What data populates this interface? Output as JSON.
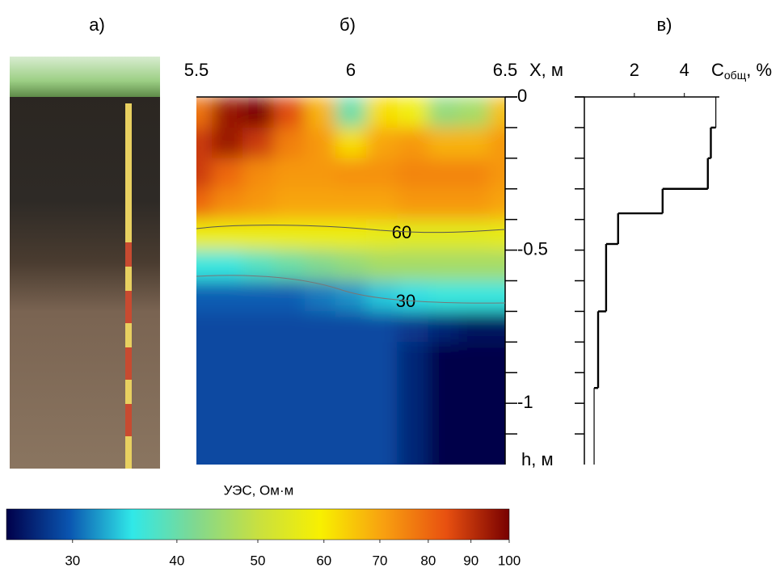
{
  "photo_panel": {
    "label": "а)"
  },
  "chart_data": [
    {
      "type": "heatmap",
      "label": "б)",
      "xlabel": "X, м",
      "ylabel": "h, м",
      "xlim": [
        5.5,
        6.5
      ],
      "xticks": [
        5.5,
        6,
        6.5
      ],
      "ylim": [
        0,
        -1.2
      ],
      "yticks": [
        0,
        -0.5,
        -1
      ],
      "yminorticks": [
        -0.1,
        -0.2,
        -0.3,
        -0.4,
        -0.6,
        -0.7,
        -0.8,
        -0.9,
        -1.1
      ],
      "x": [
        5.5,
        5.6,
        5.7,
        5.8,
        5.9,
        6.0,
        6.1,
        6.2,
        6.3,
        6.4,
        6.5
      ],
      "y": [
        -0.05,
        -0.15,
        -0.25,
        -0.35,
        -0.45,
        -0.55,
        -0.65,
        -0.75,
        -0.85,
        -0.95,
        -1.05,
        -1.15
      ],
      "z": [
        [
          78,
          95,
          100,
          85,
          68,
          40,
          62,
          58,
          44,
          46,
          66
        ],
        [
          88,
          95,
          88,
          76,
          72,
          62,
          70,
          72,
          68,
          68,
          72
        ],
        [
          88,
          80,
          74,
          72,
          72,
          73,
          73,
          75,
          75,
          75,
          72
        ],
        [
          80,
          74,
          72,
          70,
          70,
          70,
          70,
          72,
          72,
          72,
          70
        ],
        [
          57,
          57,
          57,
          57,
          57,
          57,
          56,
          55,
          55,
          55,
          56
        ],
        [
          36,
          36,
          38,
          40,
          42,
          44,
          46,
          46,
          46,
          46,
          46
        ],
        [
          30,
          30,
          30,
          30,
          31,
          32,
          34,
          35,
          36,
          36,
          36
        ],
        [
          29,
          29,
          29,
          29,
          29,
          29,
          29,
          28,
          27,
          26,
          26
        ],
        [
          29,
          29,
          29,
          29,
          29,
          29,
          29,
          27,
          25,
          24,
          24
        ],
        [
          29,
          29,
          29,
          29,
          29,
          29,
          29,
          27,
          24,
          23,
          23
        ],
        [
          29,
          29,
          29,
          29,
          29,
          29,
          29,
          27,
          24,
          23,
          23
        ],
        [
          29,
          29,
          29,
          29,
          29,
          29,
          29,
          27,
          24,
          23,
          23
        ]
      ],
      "contour_labels": [
        60,
        30
      ],
      "colorbar": {
        "label": "УЭС, Ом·м",
        "clim": [
          25,
          100
        ],
        "log_scale": true,
        "ticks": [
          30,
          40,
          50,
          60,
          70,
          80,
          90,
          100
        ],
        "colormap": [
          "#00004a",
          "#0a55b0",
          "#30e8e8",
          "#80d890",
          "#c8e040",
          "#f8f000",
          "#f8a010",
          "#e85010",
          "#780000"
        ]
      }
    },
    {
      "type": "step",
      "label": "в)",
      "xlabel": {
        "main": "C",
        "sub": "общ",
        "unit": ", %"
      },
      "xlim": [
        0,
        5.4
      ],
      "xticks": [
        2,
        4
      ],
      "ylim": [
        0,
        -1.2
      ],
      "yticks": [
        0,
        -0.1,
        -0.2,
        -0.3,
        -0.4,
        -0.5,
        -0.6,
        -0.7,
        -0.8,
        -0.9,
        -1.0,
        -1.1
      ],
      "depth_edges": [
        0,
        -0.1,
        -0.2,
        -0.3,
        -0.38,
        -0.48,
        -0.7,
        -0.95,
        -1.2
      ],
      "values": [
        5.26,
        5.06,
        4.94,
        3.13,
        1.35,
        0.87,
        0.55,
        0.39
      ],
      "color": "#000000"
    }
  ]
}
